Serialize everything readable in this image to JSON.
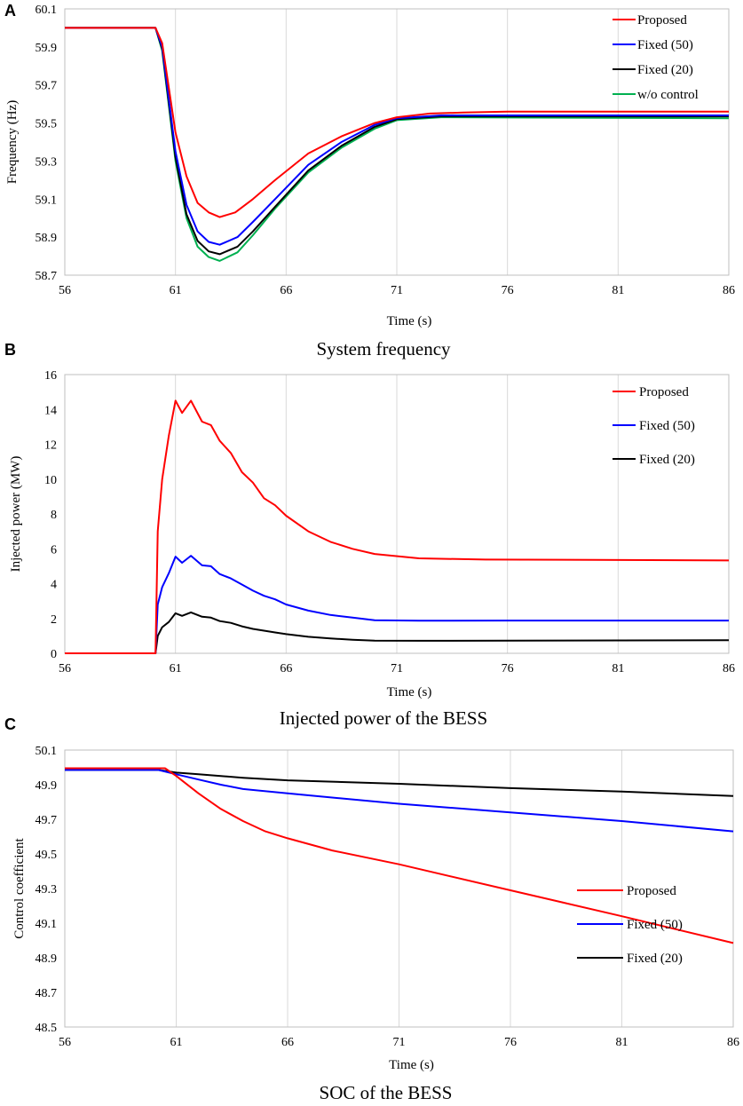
{
  "chart_data": [
    {
      "panel": "A",
      "type": "line",
      "title": "System frequency",
      "xlabel": "Time (s)",
      "ylabel": "Frequency (Hz)",
      "xlim": [
        56,
        86
      ],
      "ylim": [
        58.7,
        60.1
      ],
      "xticks": [
        56,
        61,
        66,
        71,
        76,
        81,
        86
      ],
      "yticks": [
        "58.7",
        "58.9",
        "59.1",
        "59.3",
        "59.5",
        "59.7",
        "59.9",
        "60.1"
      ],
      "legend_position": "top-right",
      "series": [
        {
          "name": "Proposed",
          "color": "#ff0000",
          "points": [
            [
              56,
              60.0
            ],
            [
              60.1,
              60.0
            ],
            [
              60.4,
              59.92
            ],
            [
              61,
              59.45
            ],
            [
              61.5,
              59.22
            ],
            [
              62,
              59.08
            ],
            [
              62.5,
              59.03
            ],
            [
              63,
              59.005
            ],
            [
              63.7,
              59.03
            ],
            [
              64.5,
              59.1
            ],
            [
              65.5,
              59.2
            ],
            [
              67,
              59.34
            ],
            [
              68.5,
              59.43
            ],
            [
              70,
              59.5
            ],
            [
              71,
              59.53
            ],
            [
              72.5,
              59.55
            ],
            [
              74,
              59.555
            ],
            [
              76,
              59.56
            ],
            [
              86,
              59.56
            ]
          ]
        },
        {
          "name": "Fixed (50)",
          "color": "#0000ff",
          "points": [
            [
              56,
              60.0
            ],
            [
              60.1,
              60.0
            ],
            [
              60.4,
              59.9
            ],
            [
              61,
              59.35
            ],
            [
              61.5,
              59.07
            ],
            [
              62,
              58.93
            ],
            [
              62.5,
              58.875
            ],
            [
              63,
              58.86
            ],
            [
              63.8,
              58.9
            ],
            [
              64.5,
              58.98
            ],
            [
              65.5,
              59.1
            ],
            [
              67,
              59.28
            ],
            [
              68.5,
              59.4
            ],
            [
              70,
              59.49
            ],
            [
              71,
              59.525
            ],
            [
              73,
              59.54
            ],
            [
              86,
              59.54
            ]
          ]
        },
        {
          "name": "Fixed (20)",
          "color": "#000000",
          "points": [
            [
              56,
              60.0
            ],
            [
              60.1,
              60.0
            ],
            [
              60.4,
              59.89
            ],
            [
              61,
              59.32
            ],
            [
              61.5,
              59.02
            ],
            [
              62,
              58.88
            ],
            [
              62.5,
              58.825
            ],
            [
              63,
              58.81
            ],
            [
              63.8,
              58.85
            ],
            [
              64.5,
              58.93
            ],
            [
              65.5,
              59.06
            ],
            [
              67,
              59.25
            ],
            [
              68.5,
              59.38
            ],
            [
              70,
              59.48
            ],
            [
              71,
              59.52
            ],
            [
              73,
              59.535
            ],
            [
              86,
              59.535
            ]
          ]
        },
        {
          "name": "w/o control",
          "color": "#00b050",
          "points": [
            [
              56,
              60.0
            ],
            [
              60.1,
              60.0
            ],
            [
              60.4,
              59.88
            ],
            [
              61,
              59.3
            ],
            [
              61.5,
              59.0
            ],
            [
              62,
              58.85
            ],
            [
              62.5,
              58.795
            ],
            [
              63,
              58.775
            ],
            [
              63.8,
              58.82
            ],
            [
              64.5,
              58.91
            ],
            [
              65.5,
              59.05
            ],
            [
              67,
              59.24
            ],
            [
              68.5,
              59.37
            ],
            [
              70,
              59.47
            ],
            [
              71,
              59.515
            ],
            [
              73,
              59.53
            ],
            [
              86,
              59.525
            ]
          ]
        }
      ],
      "caption": "System frequency"
    },
    {
      "panel": "B",
      "type": "line",
      "title": "Injected power of the BESS",
      "xlabel": "Time (s)",
      "ylabel": "Injected power (MW)",
      "xlim": [
        56,
        86
      ],
      "ylim": [
        0,
        16
      ],
      "xticks": [
        56,
        61,
        66,
        71,
        76,
        81,
        86
      ],
      "yticks": [
        "0",
        "2",
        "4",
        "6",
        "8",
        "10",
        "12",
        "14",
        "16"
      ],
      "legend_position": "top-right",
      "series": [
        {
          "name": "Proposed",
          "color": "#ff0000",
          "points": [
            [
              56,
              0
            ],
            [
              60.1,
              0
            ],
            [
              60.2,
              7
            ],
            [
              60.4,
              10
            ],
            [
              60.7,
              12.5
            ],
            [
              61,
              14.5
            ],
            [
              61.3,
              13.8
            ],
            [
              61.7,
              14.5
            ],
            [
              62.2,
              13.3
            ],
            [
              62.6,
              13.1
            ],
            [
              63,
              12.2
            ],
            [
              63.5,
              11.5
            ],
            [
              64,
              10.4
            ],
            [
              64.5,
              9.8
            ],
            [
              65,
              8.9
            ],
            [
              65.5,
              8.5
            ],
            [
              66,
              7.9
            ],
            [
              67,
              7.0
            ],
            [
              68,
              6.4
            ],
            [
              69,
              6.0
            ],
            [
              70,
              5.7
            ],
            [
              72,
              5.45
            ],
            [
              75,
              5.38
            ],
            [
              80,
              5.36
            ],
            [
              86,
              5.33
            ]
          ]
        },
        {
          "name": "Fixed (50)",
          "color": "#0000ff",
          "points": [
            [
              56,
              0
            ],
            [
              60.1,
              0
            ],
            [
              60.2,
              2.8
            ],
            [
              60.4,
              3.8
            ],
            [
              60.7,
              4.6
            ],
            [
              61,
              5.55
            ],
            [
              61.3,
              5.2
            ],
            [
              61.7,
              5.6
            ],
            [
              62.2,
              5.05
            ],
            [
              62.6,
              5.0
            ],
            [
              63,
              4.55
            ],
            [
              63.5,
              4.3
            ],
            [
              64,
              3.95
            ],
            [
              64.5,
              3.6
            ],
            [
              65,
              3.3
            ],
            [
              65.5,
              3.1
            ],
            [
              66,
              2.8
            ],
            [
              67,
              2.45
            ],
            [
              68,
              2.2
            ],
            [
              69,
              2.05
            ],
            [
              70,
              1.9
            ],
            [
              72,
              1.87
            ],
            [
              76,
              1.88
            ],
            [
              86,
              1.88
            ]
          ]
        },
        {
          "name": "Fixed (20)",
          "color": "#000000",
          "points": [
            [
              56,
              0
            ],
            [
              60.1,
              0
            ],
            [
              60.2,
              1.0
            ],
            [
              60.4,
              1.5
            ],
            [
              60.7,
              1.8
            ],
            [
              61,
              2.3
            ],
            [
              61.3,
              2.15
            ],
            [
              61.7,
              2.35
            ],
            [
              62.2,
              2.1
            ],
            [
              62.6,
              2.05
            ],
            [
              63,
              1.85
            ],
            [
              63.5,
              1.75
            ],
            [
              64,
              1.55
            ],
            [
              64.5,
              1.4
            ],
            [
              65,
              1.3
            ],
            [
              65.5,
              1.2
            ],
            [
              66,
              1.1
            ],
            [
              67,
              0.95
            ],
            [
              68,
              0.85
            ],
            [
              69,
              0.78
            ],
            [
              70,
              0.73
            ],
            [
              72,
              0.72
            ],
            [
              76,
              0.73
            ],
            [
              86,
              0.75
            ]
          ]
        }
      ],
      "caption": "Injected power of the BESS"
    },
    {
      "panel": "C",
      "type": "line",
      "title": "SOC of the BESS",
      "xlabel": "Time (s)",
      "ylabel": "Control coefficient",
      "xlim": [
        56,
        86
      ],
      "ylim": [
        48.5,
        50.1
      ],
      "xticks": [
        56,
        61,
        66,
        71,
        76,
        81,
        86
      ],
      "yticks": [
        "48.5",
        "48.7",
        "48.9",
        "49.1",
        "49.3",
        "49.5",
        "49.7",
        "49.9",
        "50.1"
      ],
      "legend_position": "center-right",
      "series": [
        {
          "name": "Proposed",
          "color": "#ff0000",
          "points": [
            [
              56,
              49.995
            ],
            [
              60.5,
              49.995
            ],
            [
              61,
              49.95
            ],
            [
              62,
              49.85
            ],
            [
              63,
              49.76
            ],
            [
              64,
              49.69
            ],
            [
              65,
              49.63
            ],
            [
              66,
              49.59
            ],
            [
              68,
              49.52
            ],
            [
              71,
              49.44
            ],
            [
              76,
              49.29
            ],
            [
              81,
              49.14
            ],
            [
              86,
              48.985
            ]
          ]
        },
        {
          "name": "Fixed (50)",
          "color": "#0000ff",
          "points": [
            [
              56,
              49.985
            ],
            [
              60.2,
              49.985
            ],
            [
              61,
              49.96
            ],
            [
              62,
              49.93
            ],
            [
              63,
              49.9
            ],
            [
              64,
              49.875
            ],
            [
              66,
              49.85
            ],
            [
              71,
              49.79
            ],
            [
              76,
              49.74
            ],
            [
              81,
              49.69
            ],
            [
              86,
              49.63
            ]
          ]
        },
        {
          "name": "Fixed (20)",
          "color": "#000000",
          "points": [
            [
              56,
              49.985
            ],
            [
              60.2,
              49.985
            ],
            [
              61,
              49.97
            ],
            [
              62,
              49.96
            ],
            [
              63,
              49.95
            ],
            [
              64,
              49.94
            ],
            [
              66,
              49.925
            ],
            [
              71,
              49.905
            ],
            [
              76,
              49.88
            ],
            [
              81,
              49.86
            ],
            [
              86,
              49.835
            ]
          ]
        }
      ],
      "caption": "SOC of the BESS"
    }
  ]
}
